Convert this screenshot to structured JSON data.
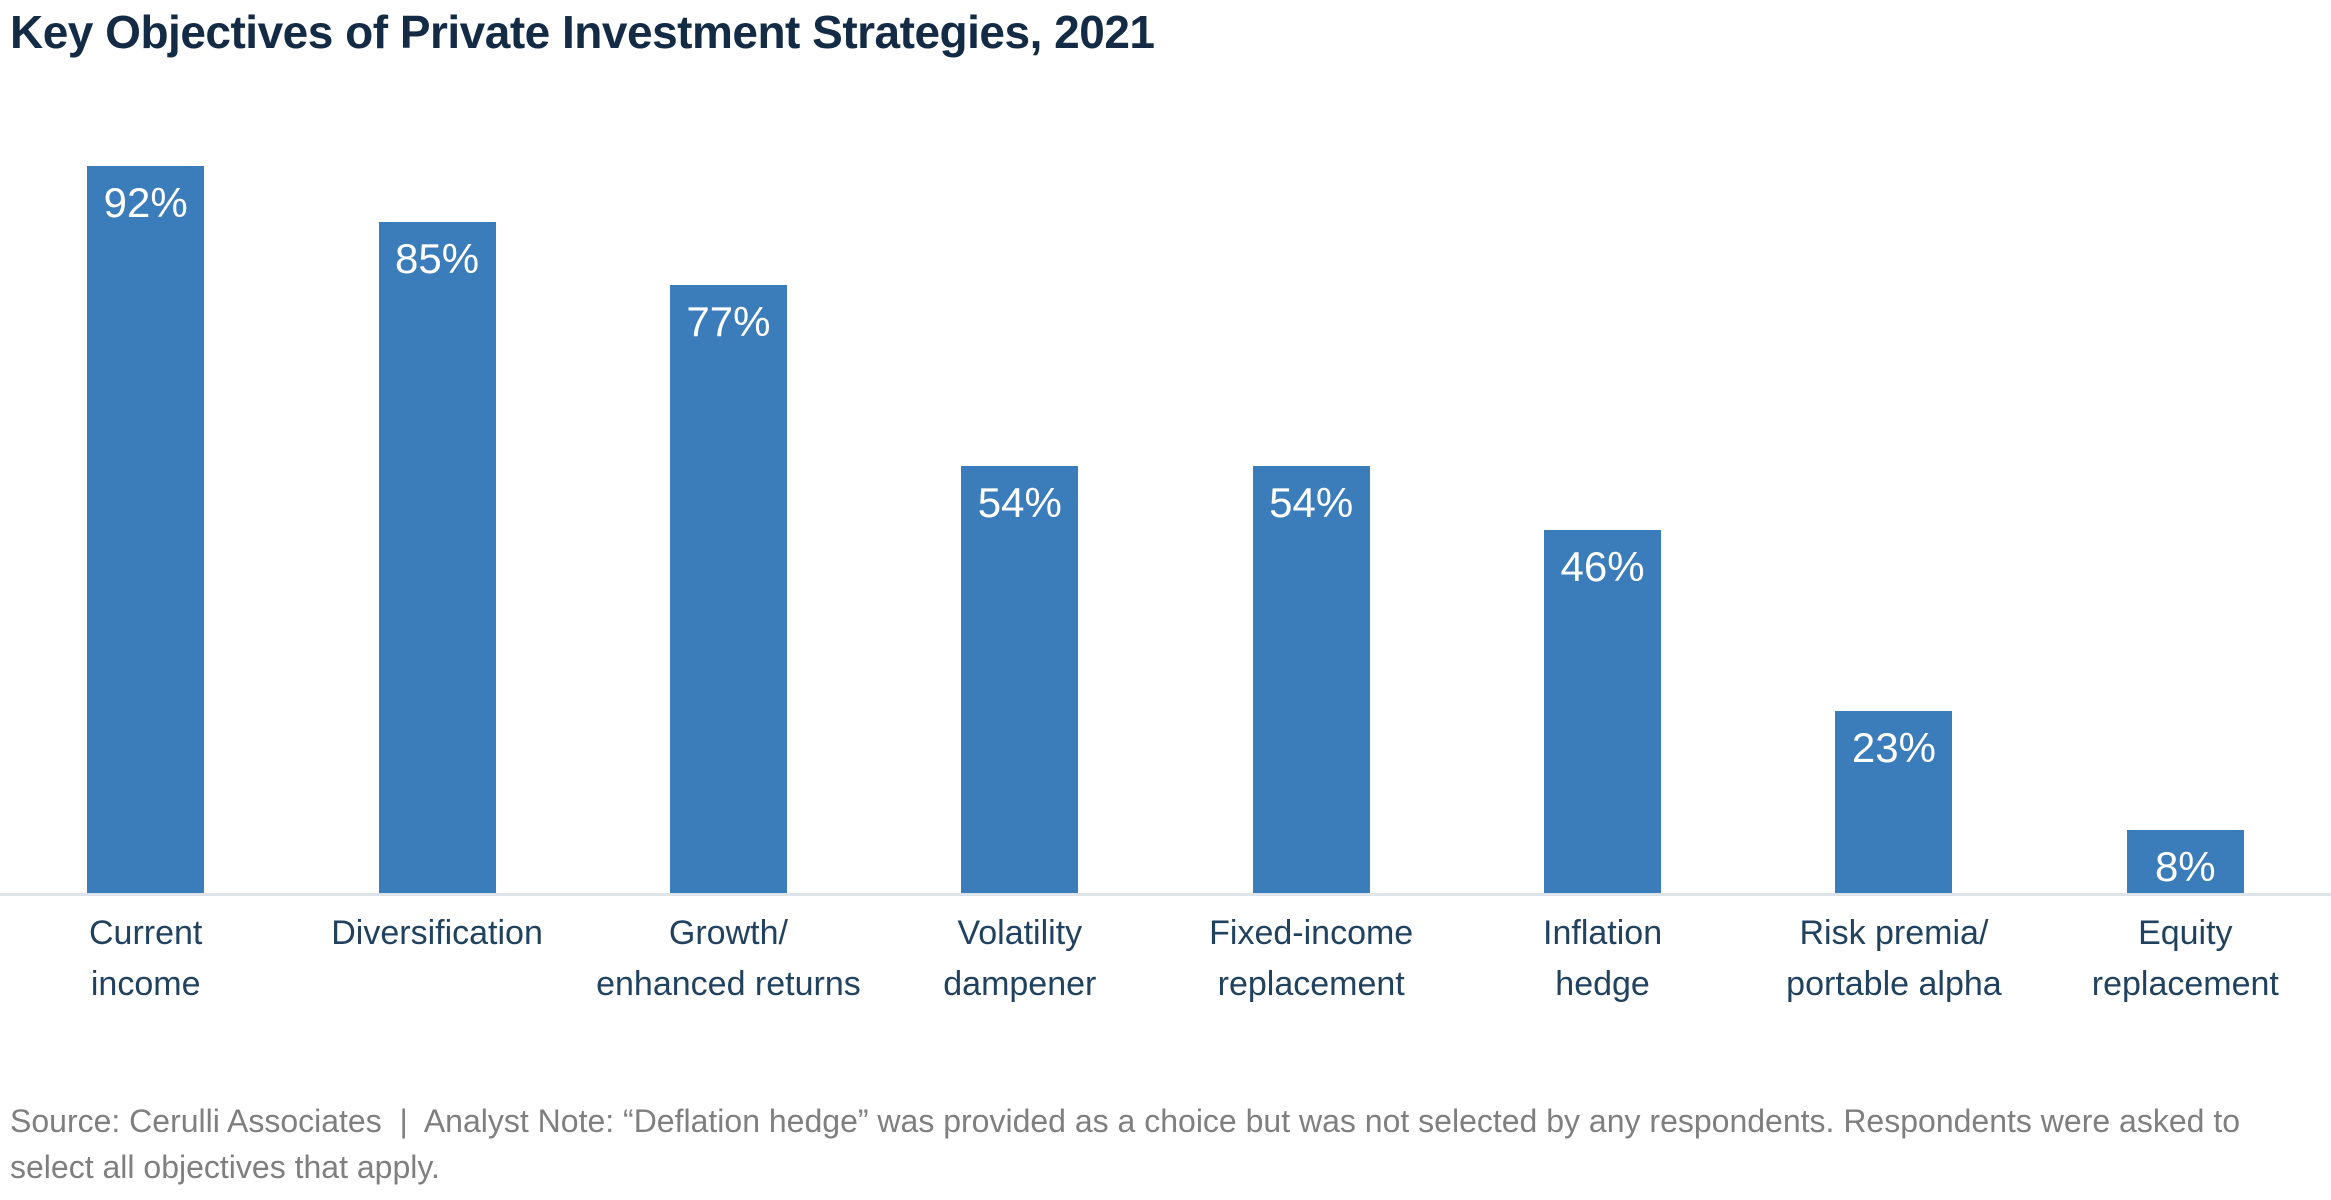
{
  "title": "Key Objectives of Private Investment Strategies, 2021",
  "source_note": "Source: Cerulli Associates  |  Analyst Note: “Deflation hedge” was provided as a choice but was not selected by any respondents. Respondents were asked to select all objectives that apply.",
  "colors": {
    "bar": "#3B7CBA",
    "title_text": "#132B45",
    "category_text": "#21425F",
    "value_text": "#FFFFFF",
    "source_text": "#7F7F7F",
    "axis_line": "#DEE5EA",
    "background": "#FFFFFF"
  },
  "chart_data": {
    "type": "bar",
    "title": "Key Objectives of Private Investment Strategies, 2021",
    "categories": [
      "Current income",
      "Diversification",
      "Growth/enhanced returns",
      "Volatility dampener",
      "Fixed-income replacement",
      "Inflation hedge",
      "Risk premia/portable alpha",
      "Equity replacement"
    ],
    "categories_display": [
      "Current\nincome",
      "Diversification",
      "Growth/\nenhanced returns",
      "Volatility\ndampener",
      "Fixed-income\nreplacement",
      "Inflation\nhedge",
      "Risk premia/\nportable alpha",
      "Equity\nreplacement"
    ],
    "values": [
      92,
      85,
      77,
      54,
      54,
      46,
      23,
      8
    ],
    "value_labels": [
      "92%",
      "85%",
      "77%",
      "54%",
      "54%",
      "46%",
      "23%",
      "8%"
    ],
    "xlabel": "",
    "ylabel": "",
    "ylim": [
      0,
      100
    ],
    "grid": false,
    "legend": false,
    "bar_color": "#3B7CBA",
    "value_label_position": "inside-top",
    "orientation": "vertical"
  }
}
